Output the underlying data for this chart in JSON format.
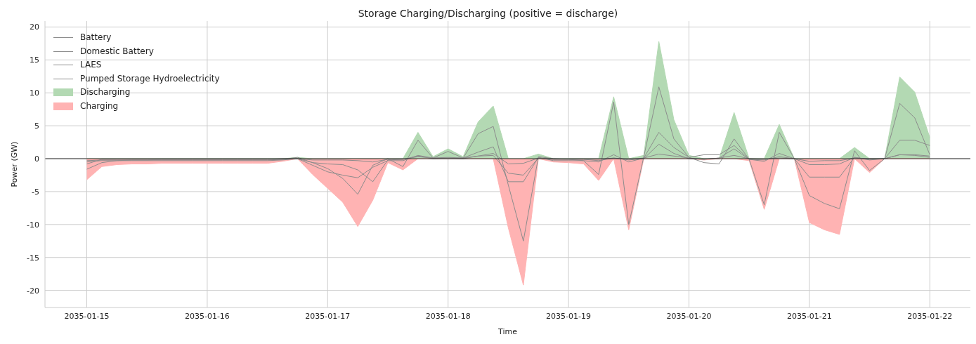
{
  "chart_data": {
    "type": "line",
    "title": "Storage Charging/Discharging (positive = discharge)",
    "xlabel": "Time",
    "ylabel": "Power (GW)",
    "x": [
      "2035-01-15T00:00",
      "2035-01-15T03:00",
      "2035-01-15T06:00",
      "2035-01-15T09:00",
      "2035-01-15T12:00",
      "2035-01-15T15:00",
      "2035-01-15T18:00",
      "2035-01-15T21:00",
      "2035-01-16T00:00",
      "2035-01-16T03:00",
      "2035-01-16T06:00",
      "2035-01-16T09:00",
      "2035-01-16T12:00",
      "2035-01-16T15:00",
      "2035-01-16T18:00",
      "2035-01-16T21:00",
      "2035-01-17T00:00",
      "2035-01-17T03:00",
      "2035-01-17T06:00",
      "2035-01-17T09:00",
      "2035-01-17T12:00",
      "2035-01-17T15:00",
      "2035-01-17T18:00",
      "2035-01-17T21:00",
      "2035-01-18T00:00",
      "2035-01-18T03:00",
      "2035-01-18T06:00",
      "2035-01-18T09:00",
      "2035-01-18T12:00",
      "2035-01-18T15:00",
      "2035-01-18T18:00",
      "2035-01-18T21:00",
      "2035-01-19T00:00",
      "2035-01-19T03:00",
      "2035-01-19T06:00",
      "2035-01-19T09:00",
      "2035-01-19T12:00",
      "2035-01-19T15:00",
      "2035-01-19T18:00",
      "2035-01-19T21:00",
      "2035-01-20T00:00",
      "2035-01-20T03:00",
      "2035-01-20T06:00",
      "2035-01-20T09:00",
      "2035-01-20T12:00",
      "2035-01-20T15:00",
      "2035-01-20T18:00",
      "2035-01-20T21:00",
      "2035-01-21T00:00",
      "2035-01-21T03:00",
      "2035-01-21T06:00",
      "2035-01-21T09:00",
      "2035-01-21T12:00",
      "2035-01-21T15:00",
      "2035-01-21T18:00",
      "2035-01-21T21:00",
      "2035-01-22T00:00"
    ],
    "series": [
      {
        "name": "Battery",
        "color": "#8c8c8c",
        "values": [
          -0.5,
          -0.3,
          -0.3,
          -0.3,
          -0.3,
          -0.3,
          -0.3,
          -0.3,
          -0.3,
          -0.3,
          -0.3,
          -0.3,
          -0.3,
          -0.2,
          0,
          -1.0,
          -2.0,
          -2.5,
          -2.9,
          -1.3,
          -0.3,
          -0.3,
          0.5,
          0.1,
          0.2,
          0.1,
          1.0,
          1.8,
          -3.5,
          -3.5,
          0.2,
          -0.3,
          -0.3,
          -0.3,
          -0.5,
          0.6,
          -0.5,
          0.1,
          4.0,
          1.7,
          0.2,
          0.6,
          0.6,
          2.0,
          -0.1,
          -0.4,
          0.8,
          0,
          -2.8,
          -2.8,
          -2.8,
          0.2,
          -0.2,
          0,
          2.8,
          2.8,
          2.0
        ]
      },
      {
        "name": "Domestic Battery",
        "color": "#8c8c8c",
        "values": [
          -0.3,
          -0.2,
          -0.2,
          -0.2,
          -0.2,
          -0.2,
          -0.2,
          -0.2,
          -0.2,
          -0.2,
          -0.2,
          -0.2,
          -0.2,
          -0.1,
          0,
          -0.2,
          -0.2,
          -0.2,
          -0.3,
          -0.5,
          -0.1,
          -0.1,
          0.3,
          0.1,
          0.1,
          0.1,
          0.4,
          0.8,
          -0.8,
          -0.7,
          0.1,
          -0.1,
          -0.1,
          -0.1,
          -0.1,
          0.1,
          -0.1,
          0.1,
          0.7,
          0.4,
          0.1,
          -0.1,
          0.1,
          0.5,
          0,
          -0.1,
          0.1,
          0,
          -0.4,
          -0.3,
          -0.3,
          0.1,
          0,
          0,
          0.6,
          0.5,
          0.2
        ]
      },
      {
        "name": "LAES",
        "color": "#8c8c8c",
        "values": [
          -0.8,
          -0.1,
          -0.1,
          -0.1,
          -0.1,
          -0.1,
          -0.1,
          -0.1,
          -0.1,
          -0.1,
          -0.1,
          -0.1,
          -0.1,
          0,
          0,
          -0.6,
          -0.8,
          -0.9,
          -1.7,
          -3.5,
          -0.2,
          -0.1,
          0.4,
          0,
          0.1,
          0,
          0.4,
          0.5,
          -2.2,
          -2.5,
          0.1,
          -0.1,
          -0.1,
          -0.1,
          -0.3,
          0.1,
          -0.2,
          0,
          2.2,
          0.8,
          0,
          -0.1,
          0.1,
          1.5,
          -0.1,
          -0.2,
          0.3,
          0,
          -0.9,
          -0.9,
          -0.8,
          0.2,
          -0.1,
          0,
          0.6,
          0.6,
          0.4
        ]
      },
      {
        "name": "Pumped Storage Hydroelectricity",
        "color": "#8c8c8c",
        "values": [
          -1.6,
          -0.6,
          -0.3,
          -0.2,
          -0.2,
          -0.1,
          -0.1,
          -0.1,
          -0.1,
          -0.1,
          -0.1,
          -0.1,
          -0.1,
          -0.1,
          0.2,
          -0.6,
          -1.5,
          -3.0,
          -5.4,
          -1.0,
          0,
          -1.2,
          2.8,
          0.1,
          1.1,
          0.1,
          3.8,
          4.9,
          -4.0,
          -12.5,
          0.3,
          0,
          -0.1,
          -0.3,
          -2.4,
          8.6,
          -10.0,
          0.3,
          10.9,
          3.0,
          0.2,
          -0.6,
          -0.8,
          3.0,
          -0.1,
          -7.0,
          4.0,
          0,
          -5.6,
          -6.8,
          -7.6,
          1.2,
          -1.8,
          0,
          8.4,
          6.2,
          0.6
        ]
      },
      {
        "name": "Discharging",
        "type": "area",
        "color": "#b3d9b3",
        "values": [
          0,
          0,
          0,
          0,
          0,
          0,
          0,
          0,
          0,
          0,
          0,
          0,
          0,
          0,
          0.2,
          0,
          0,
          0,
          0,
          0,
          0,
          0,
          4.0,
          0.3,
          1.5,
          0.3,
          5.6,
          8.0,
          0,
          0,
          0.7,
          0,
          0,
          0,
          0,
          9.4,
          0,
          0.5,
          17.8,
          5.9,
          0.5,
          0,
          0,
          7.0,
          0,
          0,
          5.2,
          0,
          0,
          0,
          0,
          1.7,
          0,
          0,
          12.4,
          10.1,
          3.2
        ]
      },
      {
        "name": "Charging",
        "type": "area",
        "color": "#ffb3b3",
        "values": [
          -3.2,
          -1.2,
          -0.9,
          -0.8,
          -0.8,
          -0.7,
          -0.7,
          -0.7,
          -0.7,
          -0.7,
          -0.7,
          -0.7,
          -0.7,
          -0.4,
          0,
          -2.4,
          -4.5,
          -6.6,
          -10.3,
          -6.3,
          -0.6,
          -1.7,
          0,
          0,
          0,
          0,
          0,
          0,
          -10.5,
          -19.2,
          0,
          -0.5,
          -0.6,
          -0.8,
          -3.3,
          0,
          -10.8,
          0,
          0,
          0,
          0,
          -0.2,
          0,
          0,
          -0.3,
          -7.7,
          0,
          0,
          -9.7,
          -10.8,
          -11.5,
          0,
          -2.1,
          0,
          0,
          0,
          0
        ]
      }
    ],
    "xlim": [
      "2035-01-14T15:40",
      "2035-01-22T08:05"
    ],
    "xticks": [
      "2035-01-15",
      "2035-01-16",
      "2035-01-17",
      "2035-01-18",
      "2035-01-19",
      "2035-01-20",
      "2035-01-21",
      "2035-01-22"
    ],
    "ylim": [
      -22.6,
      20.9
    ],
    "yticks": [
      -20,
      -15,
      -10,
      -5,
      0,
      5,
      10,
      15,
      20
    ],
    "ref_lines": [
      {
        "axis": "y",
        "value": 0,
        "color": "#000000"
      }
    ],
    "grid": true,
    "legend": "top left",
    "marker": "none",
    "line_style": "solid"
  }
}
